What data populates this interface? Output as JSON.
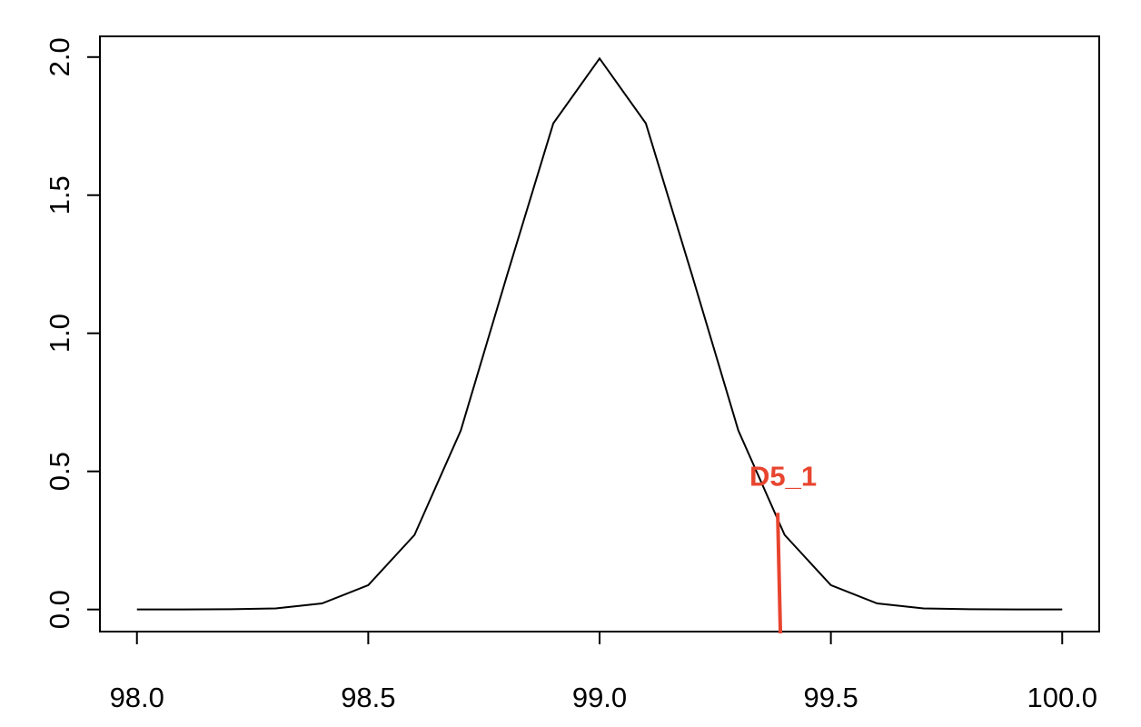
{
  "chart_data": {
    "type": "line",
    "x": [
      98.0,
      98.1,
      98.2,
      98.3,
      98.4,
      98.5,
      98.6,
      98.7,
      98.8,
      98.9,
      99.0,
      99.1,
      99.2,
      99.3,
      99.4,
      99.5,
      99.6,
      99.7,
      99.8,
      99.9,
      100.0
    ],
    "values": [
      0,
      0,
      0.001,
      0.004,
      0.022,
      0.088,
      0.27,
      0.648,
      1.21,
      1.76,
      1.995,
      1.76,
      1.21,
      0.648,
      0.27,
      0.088,
      0.022,
      0.004,
      0.001,
      0,
      0
    ],
    "color": "#000000",
    "xlim": [
      97.92,
      100.08
    ],
    "ylim": [
      -0.08,
      2.075
    ],
    "xticks": [
      {
        "value": 98,
        "label": "98.0"
      },
      98.5,
      {
        "value": 99,
        "label": "99.0"
      },
      99.5,
      {
        "value": 100,
        "label": "100.0"
      }
    ],
    "yticks": [
      {
        "value": 0,
        "label": "0.0"
      },
      0.5,
      {
        "value": 1,
        "label": "1.0"
      },
      1.5,
      {
        "value": 2,
        "label": "2.0"
      }
    ],
    "marker": {
      "label": "D5_1",
      "x": 99.385,
      "y_top": 0.35,
      "color": "#e8452f"
    }
  }
}
